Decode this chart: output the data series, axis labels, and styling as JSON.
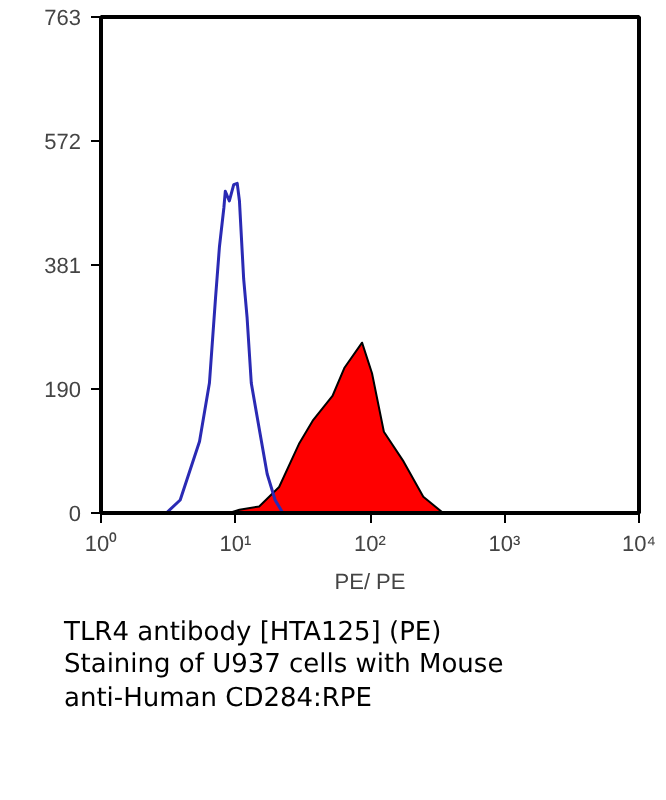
{
  "chart_data": {
    "type": "line",
    "xlabel": "PE/ PE",
    "log": "x",
    "grid": false,
    "xlim": [
      1,
      10000
    ],
    "ylim": [
      0,
      763
    ],
    "xticks": [
      {
        "value": 1,
        "label": "10⁰"
      },
      {
        "value": 10,
        "label": "10¹"
      },
      {
        "value": 100,
        "label": "10²"
      },
      {
        "value": 1000,
        "label": "10³"
      },
      {
        "value": 10000,
        "label": "10⁴"
      }
    ],
    "yticks": [
      0,
      190,
      381,
      572,
      763
    ],
    "series": [
      {
        "color": "#2a2ab4",
        "x": [
          3.06,
          3.88,
          5.4,
          6.4,
          7.1,
          7.6,
          8.2,
          8.4,
          9.0,
          9.7,
          10.3,
          10.7,
          11.5,
          12.2,
          13.1,
          15.0,
          17.2,
          19.7,
          22.5
        ],
        "values": [
          0,
          20,
          110,
          200,
          330,
          410,
          470,
          495,
          480,
          505,
          507,
          480,
          360,
          300,
          200,
          130,
          60,
          20,
          0
        ]
      },
      {
        "type": "area",
        "color": "#ff0000",
        "x": [
          9.0,
          10.7,
          15.0,
          21.1,
          29.6,
          37.5,
          52.6,
          64.4,
          87.3,
          103.5,
          126.8,
          178,
          249,
          350
        ],
        "values": [
          0,
          5,
          10,
          40,
          106,
          142,
          180,
          223,
          262,
          215,
          125,
          79,
          25,
          0
        ]
      }
    ],
    "annotations": [
      "TLR4 antibody [HTA125] (PE)",
      "Staining of U937 cells with Mouse",
      "anti-Human CD284:RPE"
    ]
  }
}
